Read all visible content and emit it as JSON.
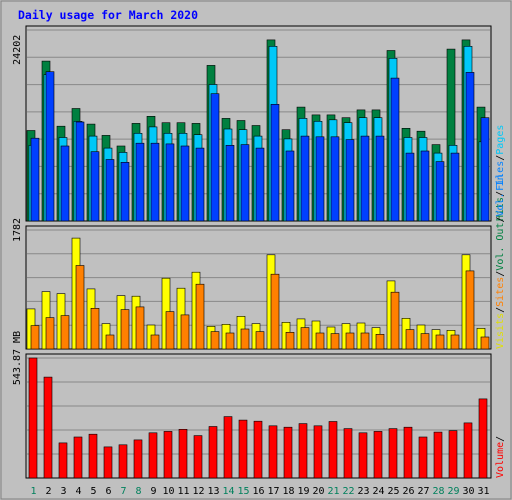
{
  "chart_data": [
    {
      "type": "bar",
      "title": "Daily usage for March 2020",
      "categories": [
        "1",
        "2",
        "3",
        "4",
        "5",
        "6",
        "7",
        "8",
        "9",
        "10",
        "11",
        "12",
        "13",
        "14",
        "15",
        "16",
        "17",
        "18",
        "19",
        "20",
        "21",
        "22",
        "23",
        "24",
        "25",
        "26",
        "27",
        "28",
        "29",
        "30",
        "31"
      ],
      "weekend_days": [
        "1",
        "7",
        "8",
        "14",
        "15",
        "21",
        "22",
        "28",
        "29"
      ],
      "ytick_label": "24202",
      "ytick_value": 24202,
      "series": [
        {
          "name": "Hits",
          "color": "#008040",
          "values": [
            12800,
            22600,
            13400,
            15900,
            13700,
            12100,
            10600,
            13800,
            14800,
            13900,
            13900,
            13800,
            22000,
            14500,
            14200,
            13500,
            25600,
            12900,
            16100,
            15000,
            15000,
            14600,
            15700,
            15700,
            24100,
            13100,
            12700,
            10800,
            24300,
            25600,
            16100
          ]
        },
        {
          "name": "Files",
          "color": "#00c8f8",
          "values": [
            10700,
            20700,
            11800,
            14100,
            12000,
            10300,
            9700,
            12400,
            13300,
            12400,
            12400,
            12200,
            19300,
            13000,
            12900,
            12000,
            24700,
            11600,
            14500,
            14100,
            14300,
            13900,
            14600,
            14600,
            23000,
            11800,
            11800,
            9600,
            10700,
            24700,
            11200
          ]
        },
        {
          "name": "Pages",
          "color": "#0040ff",
          "values": [
            11700,
            21100,
            10600,
            14000,
            9800,
            8700,
            8300,
            11000,
            11000,
            10900,
            10600,
            10300,
            18000,
            10700,
            10800,
            10300,
            16500,
            9900,
            12000,
            11900,
            11900,
            11500,
            12000,
            12000,
            20200,
            9600,
            9900,
            8400,
            9600,
            21000,
            14600
          ]
        }
      ],
      "legend_position": "right",
      "grid": true
    },
    {
      "type": "bar",
      "ytick_label": "1782",
      "ytick_value": 1782,
      "series": [
        {
          "name": "Visits",
          "color": "#ffff00",
          "values": [
            600,
            860,
            830,
            1660,
            900,
            380,
            800,
            790,
            360,
            1060,
            910,
            1150,
            340,
            370,
            490,
            380,
            1410,
            400,
            450,
            420,
            330,
            380,
            390,
            320,
            1020,
            460,
            360,
            290,
            280,
            1410,
            310
          ]
        },
        {
          "name": "Sites",
          "color": "#ff8000",
          "values": [
            350,
            470,
            500,
            1250,
            610,
            210,
            590,
            630,
            210,
            560,
            510,
            970,
            260,
            240,
            300,
            260,
            1120,
            250,
            320,
            240,
            230,
            240,
            240,
            220,
            850,
            290,
            230,
            210,
            210,
            1170,
            180
          ]
        }
      ],
      "legend_position": "right",
      "grid": true
    },
    {
      "type": "bar",
      "ytick_label": "543.87 MB",
      "ytick_value": 543.87,
      "series": [
        {
          "name": "Volume",
          "color": "#ff0000",
          "values": [
            543.87,
            457.2,
            159.0,
            185.6,
            198.4,
            140.8,
            150.4,
            172.8,
            204.8,
            211.2,
            220.8,
            192.0,
            233.6,
            278.4,
            262.4,
            257.6,
            236.8,
            230.4,
            246.4,
            236.8,
            256.0,
            224.0,
            204.8,
            211.2,
            224.0,
            230.4,
            185.6,
            208.0,
            214.4,
            249.6,
            358.4
          ]
        }
      ],
      "legend_position": "right",
      "grid": true
    }
  ],
  "legends": {
    "top": [
      {
        "text": "Hits",
        "color": "#008040"
      },
      {
        "text": "/",
        "color": "#000000"
      },
      {
        "text": "Files",
        "color": "#0080ff"
      },
      {
        "text": "/",
        "color": "#000000"
      },
      {
        "text": "Pages",
        "color": "#00c8f8"
      }
    ],
    "middle": [
      {
        "text": "Visits",
        "color": "#e0e000"
      },
      {
        "text": "/",
        "color": "#000000"
      },
      {
        "text": "Sites",
        "color": "#ff8000"
      },
      {
        "text": "/",
        "color": "#000000"
      },
      {
        "text": "Vol. Out",
        "color": "#008040"
      },
      {
        "text": "/",
        "color": "#000000"
      },
      {
        "text": "Vol. In",
        "color": "#0080ff"
      }
    ],
    "bottom": [
      {
        "text": "Volume",
        "color": "#ff0000"
      },
      {
        "text": "/",
        "color": "#000000"
      }
    ]
  },
  "colors": {
    "title": "#0000ff",
    "weekday_label": "#000000",
    "weekend_label": "#00805c",
    "plot_bg": "#c0c0c0",
    "frame_bg": "#c0c0c0"
  }
}
